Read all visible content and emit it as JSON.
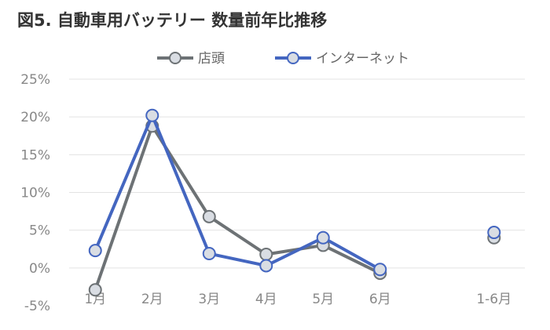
{
  "chart_data": {
    "type": "line",
    "title": "図5. 自動車用バッテリー 数量前年比推移",
    "categories": [
      "1月",
      "2月",
      "3月",
      "4月",
      "5月",
      "6月",
      "",
      "1-6月"
    ],
    "y_ticks": [
      "-5%",
      "0%",
      "5%",
      "10%",
      "15%",
      "20%",
      "25%"
    ],
    "ylim": [
      -5,
      25
    ],
    "grid": true,
    "legend_position": "top",
    "series": [
      {
        "name": "店頭",
        "color": "#6d7275",
        "values": [
          -2.9,
          18.8,
          6.8,
          1.8,
          3.0,
          -0.7,
          null,
          4.0
        ]
      },
      {
        "name": "インターネット",
        "color": "#4466c0",
        "values": [
          2.3,
          20.2,
          1.9,
          0.3,
          4.0,
          -0.2,
          null,
          4.7
        ]
      }
    ],
    "marker_fill": "#d9dde3"
  }
}
